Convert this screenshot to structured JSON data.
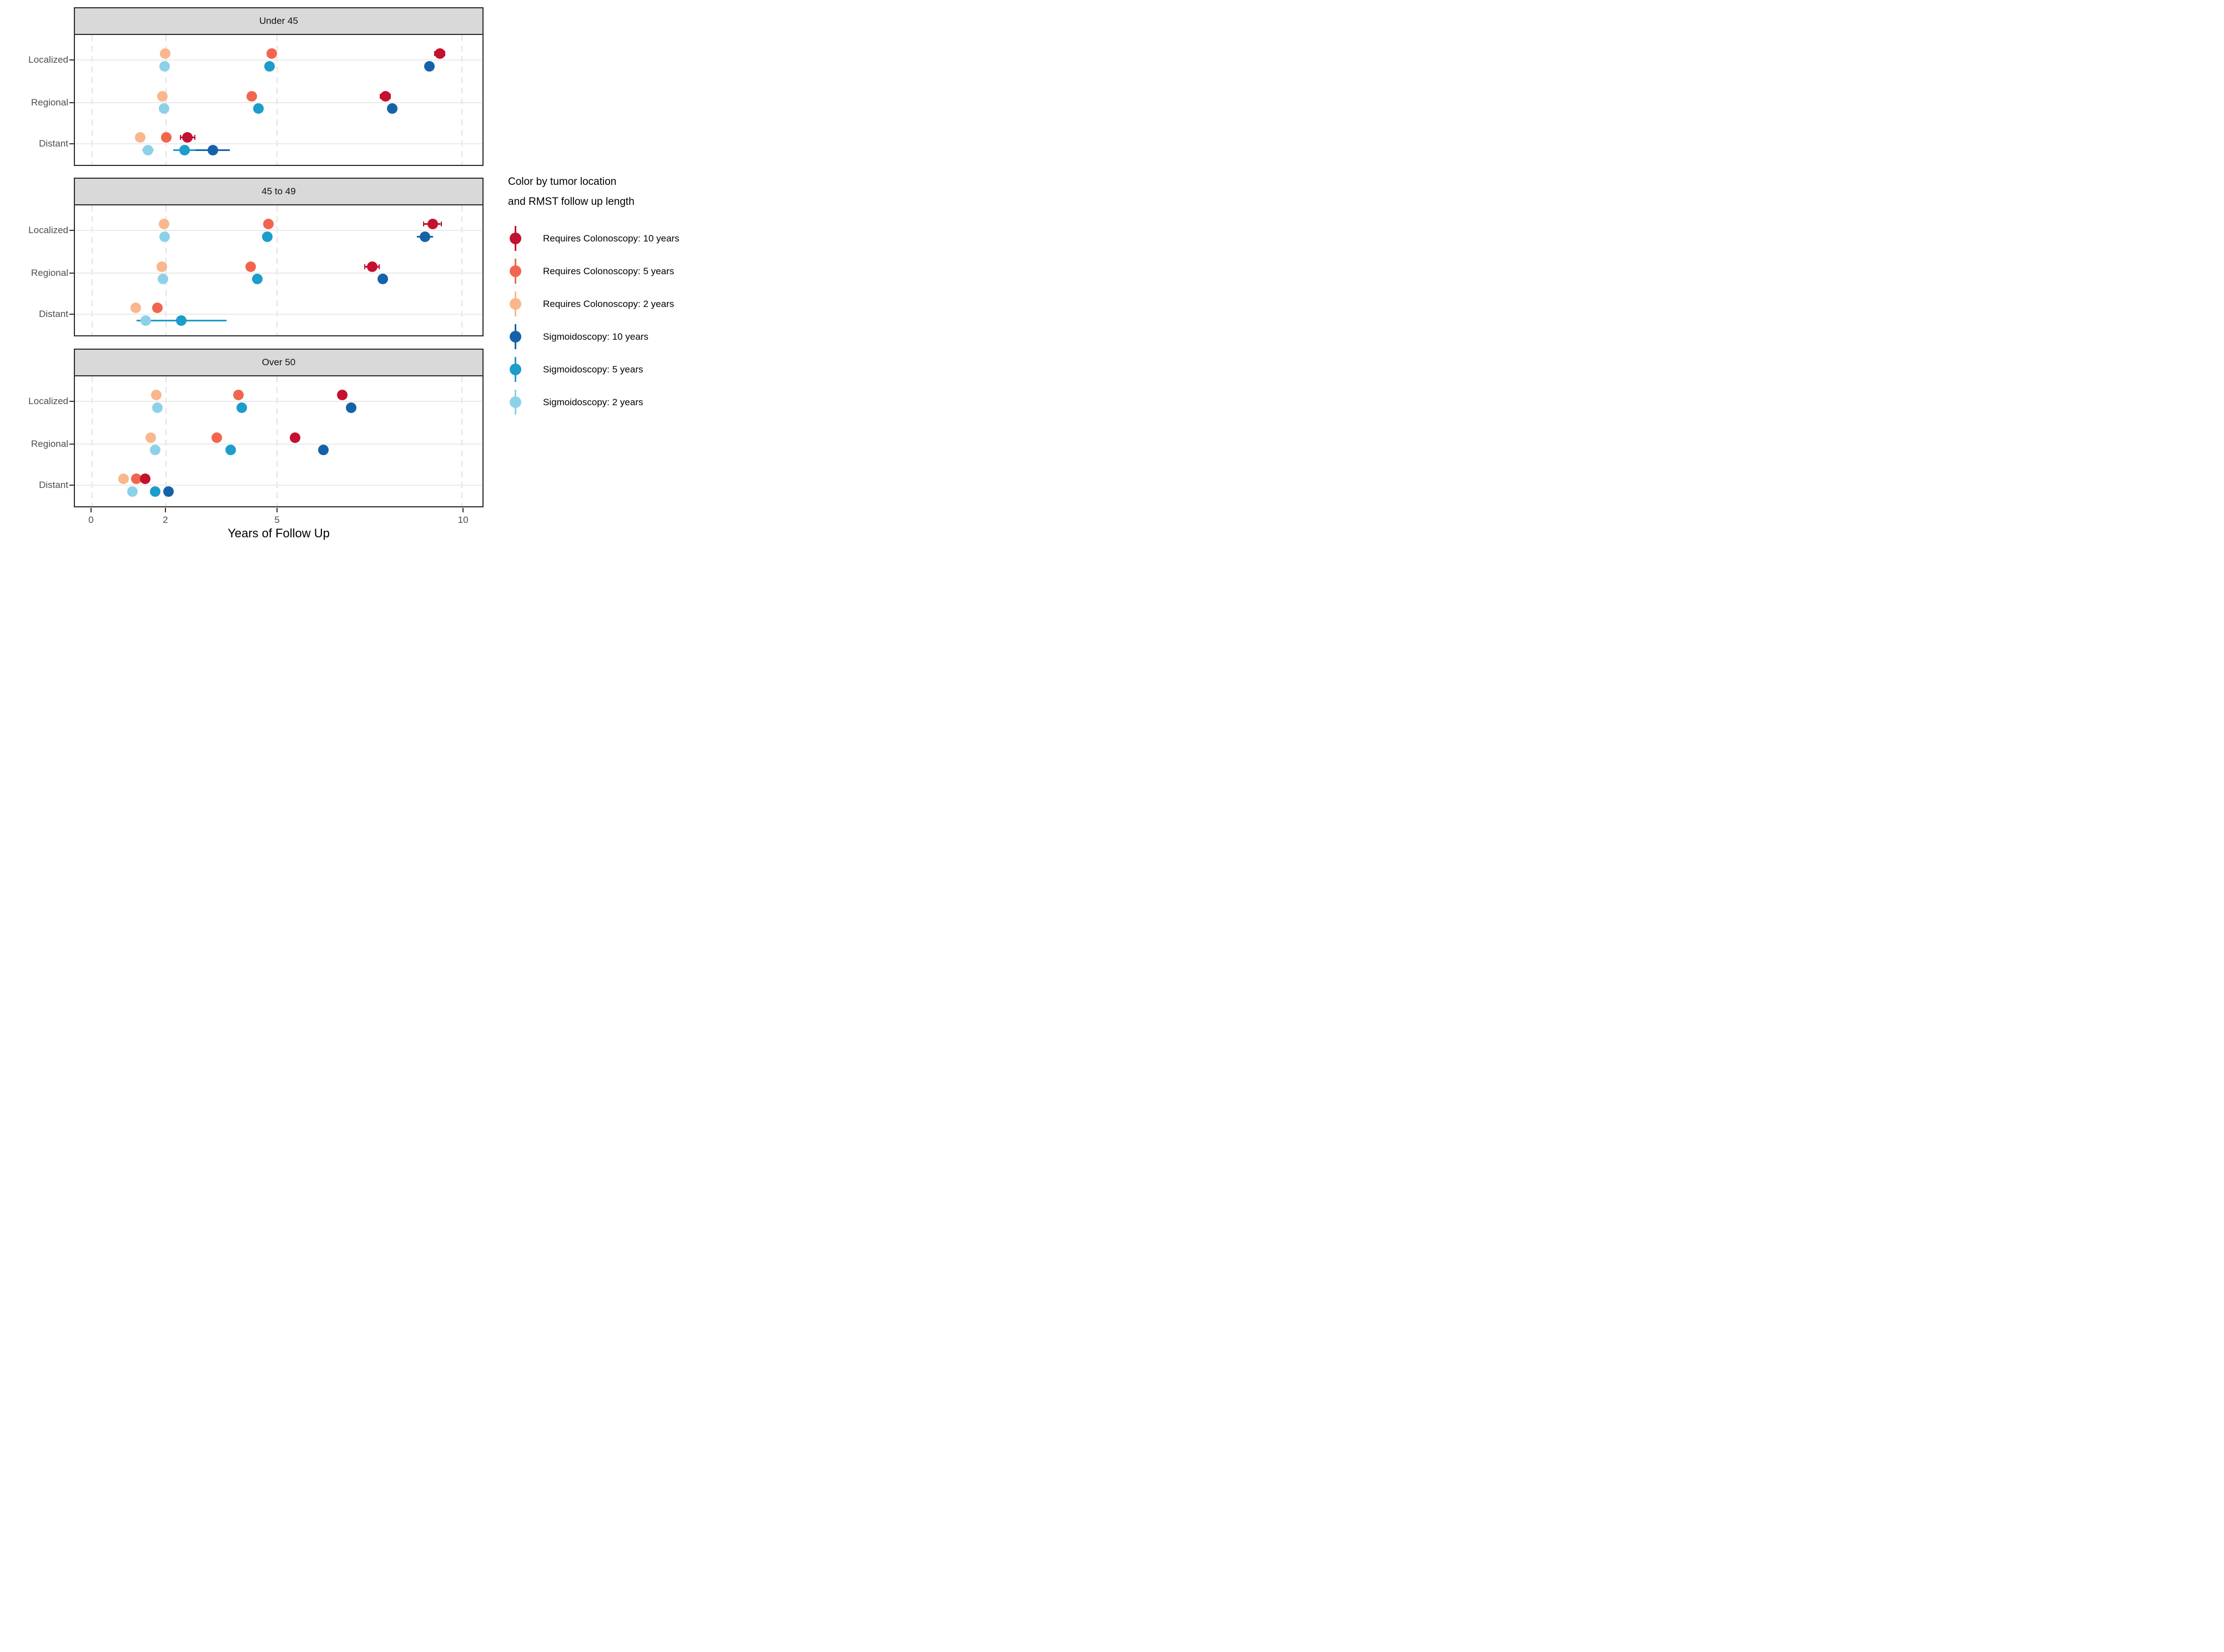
{
  "chart_data": {
    "type": "scatter",
    "subtype": "faceted-pointrange",
    "xlabel": "Years of Follow Up",
    "x_breaks": [
      0,
      2,
      5,
      10
    ],
    "x_range": [
      -0.46,
      10.55
    ],
    "grid": "major-only",
    "legend_position": "right",
    "y_categories": [
      "Localized",
      "Regional",
      "Distant"
    ],
    "colors": {
      "strip_bg": "#D9D9D9",
      "panel_border": "#2e2e2e",
      "grid_h": "#EBEBEB",
      "grid_v": "#E3E3E3",
      "axis_text": "#4D4D4D"
    },
    "legend": {
      "title_line1": "Color by tumor location",
      "title_line2": "and RMST follow up length",
      "items": [
        {
          "key": "c10",
          "label": "Requires Colonoscopy: 10 years",
          "color": "#C3112F"
        },
        {
          "key": "c5",
          "label": "Requires Colonoscopy: 5 years",
          "color": "#F1654E"
        },
        {
          "key": "c2",
          "label": "Requires Colonoscopy: 2 years",
          "color": "#FAB68C"
        },
        {
          "key": "s10",
          "label": "Sigmoidoscopy: 10 years",
          "color": "#1562A9"
        },
        {
          "key": "s5",
          "label": "Sigmoidoscopy: 5 years",
          "color": "#1C9DCB"
        },
        {
          "key": "s2",
          "label": "Sigmoidoscopy: 2 years",
          "color": "#8DD1E9"
        }
      ]
    },
    "facets": [
      {
        "title": "Under 45",
        "points": [
          {
            "row": 0,
            "series": "c2",
            "x": 1.97
          },
          {
            "row": 0,
            "series": "c5",
            "x": 4.85
          },
          {
            "row": 0,
            "series": "c10",
            "x": 9.4,
            "lo": 9.25,
            "hi": 9.55
          },
          {
            "row": 0,
            "series": "s2",
            "x": 1.96
          },
          {
            "row": 0,
            "series": "s5",
            "x": 4.8
          },
          {
            "row": 0,
            "series": "s10",
            "x": 9.12
          },
          {
            "row": 1,
            "series": "c2",
            "x": 1.9
          },
          {
            "row": 1,
            "series": "c5",
            "x": 4.31
          },
          {
            "row": 1,
            "series": "c10",
            "x": 7.93,
            "lo": 7.78,
            "hi": 8.08
          },
          {
            "row": 1,
            "series": "s2",
            "x": 1.94
          },
          {
            "row": 1,
            "series": "s5",
            "x": 4.5
          },
          {
            "row": 1,
            "series": "s10",
            "x": 8.12
          },
          {
            "row": 2,
            "series": "c2",
            "x": 1.3
          },
          {
            "row": 2,
            "series": "c5",
            "x": 2.0
          },
          {
            "row": 2,
            "series": "c10",
            "x": 2.58,
            "lo": 2.37,
            "hi": 2.8
          },
          {
            "row": 2,
            "series": "s2",
            "x": 1.51,
            "lo": 1.36,
            "hi": 1.67
          },
          {
            "row": 2,
            "series": "s5",
            "x": 2.5,
            "lo": 2.2,
            "hi": 2.81
          },
          {
            "row": 2,
            "series": "s10",
            "x": 3.26,
            "lo": 2.8,
            "hi": 3.73
          }
        ]
      },
      {
        "title": "45 to 49",
        "points": [
          {
            "row": 0,
            "series": "c2",
            "x": 1.95
          },
          {
            "row": 0,
            "series": "c5",
            "x": 4.76
          },
          {
            "row": 0,
            "series": "c10",
            "x": 9.2,
            "lo": 8.95,
            "hi": 9.45
          },
          {
            "row": 0,
            "series": "s2",
            "x": 1.96
          },
          {
            "row": 0,
            "series": "s5",
            "x": 4.74
          },
          {
            "row": 0,
            "series": "s10",
            "x": 9.0,
            "lo": 8.78,
            "hi": 9.22
          },
          {
            "row": 1,
            "series": "c2",
            "x": 1.88
          },
          {
            "row": 1,
            "series": "c5",
            "x": 4.29
          },
          {
            "row": 1,
            "series": "c10",
            "x": 7.57,
            "lo": 7.36,
            "hi": 7.78
          },
          {
            "row": 1,
            "series": "s2",
            "x": 1.92
          },
          {
            "row": 1,
            "series": "s5",
            "x": 4.47
          },
          {
            "row": 1,
            "series": "s10",
            "x": 7.86
          },
          {
            "row": 2,
            "series": "c2",
            "x": 1.18
          },
          {
            "row": 2,
            "series": "c5",
            "x": 1.77
          },
          {
            "row": 2,
            "series": "s2",
            "x": 1.45,
            "lo": 1.31,
            "hi": 1.6
          },
          {
            "row": 2,
            "series": "s5",
            "x": 2.41,
            "lo": 1.2,
            "hi": 3.63
          }
        ]
      },
      {
        "title": "Over 50",
        "points": [
          {
            "row": 0,
            "series": "c2",
            "x": 1.73
          },
          {
            "row": 0,
            "series": "c5",
            "x": 3.95
          },
          {
            "row": 0,
            "series": "c10",
            "x": 6.76
          },
          {
            "row": 0,
            "series": "s2",
            "x": 1.76
          },
          {
            "row": 0,
            "series": "s5",
            "x": 4.05
          },
          {
            "row": 0,
            "series": "s10",
            "x": 7.0
          },
          {
            "row": 1,
            "series": "c2",
            "x": 1.59
          },
          {
            "row": 1,
            "series": "c5",
            "x": 3.37
          },
          {
            "row": 1,
            "series": "c10",
            "x": 5.48
          },
          {
            "row": 1,
            "series": "s2",
            "x": 1.7
          },
          {
            "row": 1,
            "series": "s5",
            "x": 3.75
          },
          {
            "row": 1,
            "series": "s10",
            "x": 6.25
          },
          {
            "row": 2,
            "series": "c2",
            "x": 0.85
          },
          {
            "row": 2,
            "series": "c5",
            "x": 1.19
          },
          {
            "row": 2,
            "series": "c10",
            "x": 1.43
          },
          {
            "row": 2,
            "series": "s2",
            "x": 1.09
          },
          {
            "row": 2,
            "series": "s5",
            "x": 1.7
          },
          {
            "row": 2,
            "series": "s10",
            "x": 2.07
          }
        ]
      }
    ]
  }
}
